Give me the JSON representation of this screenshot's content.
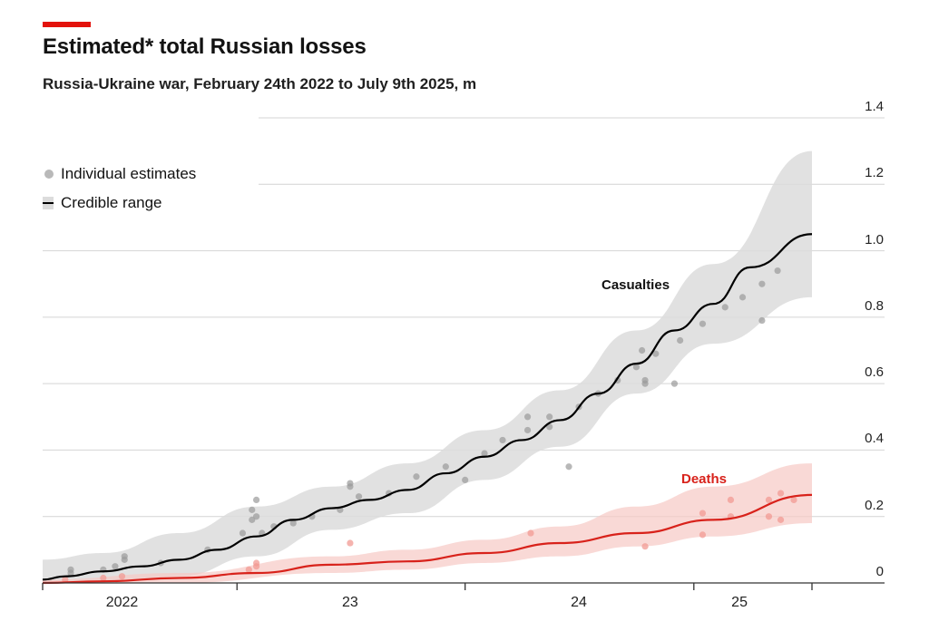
{
  "title": "Estimated* total Russian losses",
  "subtitle": "Russia-Ukraine war, February 24th 2022 to July 9th 2025, m",
  "legend": {
    "dots_label": "Individual estimates",
    "range_label": "Credible range"
  },
  "colors": {
    "accent": "#e3120b",
    "casualties_line": "#000000",
    "casualties_band": "#dcdcdc",
    "casualties_dots": "#9a9a9a",
    "deaths_line": "#d8221b",
    "deaths_band": "#f7c9c4",
    "deaths_dots": "#f29a93"
  },
  "chart_data": {
    "type": "line",
    "title": "Estimated* total Russian losses",
    "subtitle": "Russia-Ukraine war, February 24th 2022 to July 9th 2025, m",
    "x_range": [
      "2022-02-24",
      "2025-07-09"
    ],
    "ylim": [
      0,
      1.4
    ],
    "y_ticks": [
      "0",
      "0.2",
      "0.4",
      "0.6",
      "0.8",
      "1.0",
      "1.2",
      "1.4"
    ],
    "y_tick_values": [
      0,
      0.2,
      0.4,
      0.6,
      0.8,
      1.0,
      1.2,
      1.4
    ],
    "x_tick_labels": [
      "2022",
      "23",
      "24",
      "25"
    ],
    "x_tick_label_dates": [
      "2022-07-01",
      "2023-07-01",
      "2024-07-01",
      "2025-03-15"
    ],
    "grid": true,
    "legend_placement": "top-left",
    "series": [
      {
        "name": "Casualties",
        "points": [
          [
            "2022-02-24",
            0.01
          ],
          [
            "2022-04-01",
            0.02
          ],
          [
            "2022-06-01",
            0.035
          ],
          [
            "2022-08-01",
            0.05
          ],
          [
            "2022-10-01",
            0.07
          ],
          [
            "2022-12-01",
            0.1
          ],
          [
            "2023-02-01",
            0.14
          ],
          [
            "2023-04-01",
            0.19
          ],
          [
            "2023-06-01",
            0.225
          ],
          [
            "2023-08-01",
            0.25
          ],
          [
            "2023-10-01",
            0.28
          ],
          [
            "2023-12-01",
            0.33
          ],
          [
            "2024-02-01",
            0.38
          ],
          [
            "2024-04-01",
            0.43
          ],
          [
            "2024-06-01",
            0.49
          ],
          [
            "2024-08-01",
            0.57
          ],
          [
            "2024-10-01",
            0.66
          ],
          [
            "2024-12-01",
            0.76
          ],
          [
            "2025-02-01",
            0.84
          ],
          [
            "2025-04-01",
            0.95
          ],
          [
            "2025-07-09",
            1.05
          ]
        ],
        "band": [
          [
            "2022-02-24",
            0.0,
            0.07
          ],
          [
            "2022-06-01",
            0.0,
            0.09
          ],
          [
            "2022-10-01",
            0.02,
            0.15
          ],
          [
            "2023-02-01",
            0.08,
            0.23
          ],
          [
            "2023-06-01",
            0.16,
            0.29
          ],
          [
            "2023-10-01",
            0.21,
            0.36
          ],
          [
            "2024-02-01",
            0.31,
            0.46
          ],
          [
            "2024-06-01",
            0.41,
            0.58
          ],
          [
            "2024-10-01",
            0.57,
            0.76
          ],
          [
            "2025-02-01",
            0.72,
            0.96
          ],
          [
            "2025-07-09",
            0.86,
            1.3
          ]
        ],
        "estimates": [
          [
            "2022-04-10",
            0.04
          ],
          [
            "2022-04-10",
            0.03
          ],
          [
            "2022-06-20",
            0.05
          ],
          [
            "2022-07-05",
            0.07
          ],
          [
            "2022-07-05",
            0.08
          ],
          [
            "2022-06-01",
            0.04
          ],
          [
            "2022-09-01",
            0.06
          ],
          [
            "2022-11-15",
            0.1
          ],
          [
            "2023-01-10",
            0.15
          ],
          [
            "2023-01-25",
            0.22
          ],
          [
            "2023-02-01",
            0.25
          ],
          [
            "2023-02-01",
            0.2
          ],
          [
            "2023-01-25",
            0.19
          ],
          [
            "2023-02-10",
            0.15
          ],
          [
            "2023-03-01",
            0.17
          ],
          [
            "2023-04-01",
            0.18
          ],
          [
            "2023-05-01",
            0.2
          ],
          [
            "2023-06-15",
            0.22
          ],
          [
            "2023-07-01",
            0.3
          ],
          [
            "2023-07-01",
            0.29
          ],
          [
            "2023-07-15",
            0.26
          ],
          [
            "2023-09-01",
            0.27
          ],
          [
            "2023-10-15",
            0.32
          ],
          [
            "2023-12-01",
            0.35
          ],
          [
            "2024-01-01",
            0.31
          ],
          [
            "2024-02-01",
            0.39
          ],
          [
            "2024-03-01",
            0.43
          ],
          [
            "2024-04-10",
            0.5
          ],
          [
            "2024-04-10",
            0.46
          ],
          [
            "2024-05-15",
            0.5
          ],
          [
            "2024-05-15",
            0.47
          ],
          [
            "2024-06-15",
            0.35
          ],
          [
            "2024-07-01",
            0.53
          ],
          [
            "2024-08-01",
            0.57
          ],
          [
            "2024-09-01",
            0.61
          ],
          [
            "2024-10-01",
            0.65
          ],
          [
            "2024-10-10",
            0.7
          ],
          [
            "2024-10-15",
            0.61
          ],
          [
            "2024-10-15",
            0.6
          ],
          [
            "2024-11-01",
            0.69
          ],
          [
            "2024-12-01",
            0.6
          ],
          [
            "2024-12-10",
            0.73
          ],
          [
            "2025-01-15",
            0.78
          ],
          [
            "2025-02-20",
            0.83
          ],
          [
            "2025-03-20",
            0.86
          ],
          [
            "2025-04-20",
            0.9
          ],
          [
            "2025-04-20",
            0.79
          ],
          [
            "2025-05-15",
            0.94
          ]
        ]
      },
      {
        "name": "Deaths",
        "points": [
          [
            "2022-02-24",
            0.0
          ],
          [
            "2022-06-01",
            0.005
          ],
          [
            "2022-10-01",
            0.015
          ],
          [
            "2023-02-01",
            0.03
          ],
          [
            "2023-06-01",
            0.055
          ],
          [
            "2023-10-01",
            0.065
          ],
          [
            "2024-02-01",
            0.09
          ],
          [
            "2024-06-01",
            0.12
          ],
          [
            "2024-10-01",
            0.15
          ],
          [
            "2025-02-01",
            0.19
          ],
          [
            "2025-07-09",
            0.265
          ]
        ],
        "band": [
          [
            "2022-02-24",
            0.0,
            0.01
          ],
          [
            "2022-10-01",
            0.0,
            0.03
          ],
          [
            "2023-06-01",
            0.03,
            0.08
          ],
          [
            "2023-10-01",
            0.04,
            0.1
          ],
          [
            "2024-02-01",
            0.06,
            0.13
          ],
          [
            "2024-06-01",
            0.08,
            0.17
          ],
          [
            "2024-10-01",
            0.11,
            0.23
          ],
          [
            "2025-02-01",
            0.14,
            0.29
          ],
          [
            "2025-07-09",
            0.18,
            0.36
          ]
        ],
        "estimates": [
          [
            "2022-04-01",
            0.01
          ],
          [
            "2022-06-01",
            0.015
          ],
          [
            "2022-07-01",
            0.02
          ],
          [
            "2023-01-20",
            0.04
          ],
          [
            "2023-02-01",
            0.05
          ],
          [
            "2023-02-01",
            0.06
          ],
          [
            "2023-07-01",
            0.12
          ],
          [
            "2024-04-15",
            0.15
          ],
          [
            "2024-10-15",
            0.11
          ],
          [
            "2025-01-15",
            0.145
          ],
          [
            "2025-01-15",
            0.21
          ],
          [
            "2025-03-01",
            0.25
          ],
          [
            "2025-03-01",
            0.2
          ],
          [
            "2025-05-01",
            0.25
          ],
          [
            "2025-05-01",
            0.2
          ],
          [
            "2025-05-20",
            0.27
          ],
          [
            "2025-05-20",
            0.19
          ],
          [
            "2025-06-10",
            0.25
          ]
        ]
      }
    ],
    "series_labels": {
      "casualties": "Casualties",
      "deaths": "Deaths"
    }
  }
}
